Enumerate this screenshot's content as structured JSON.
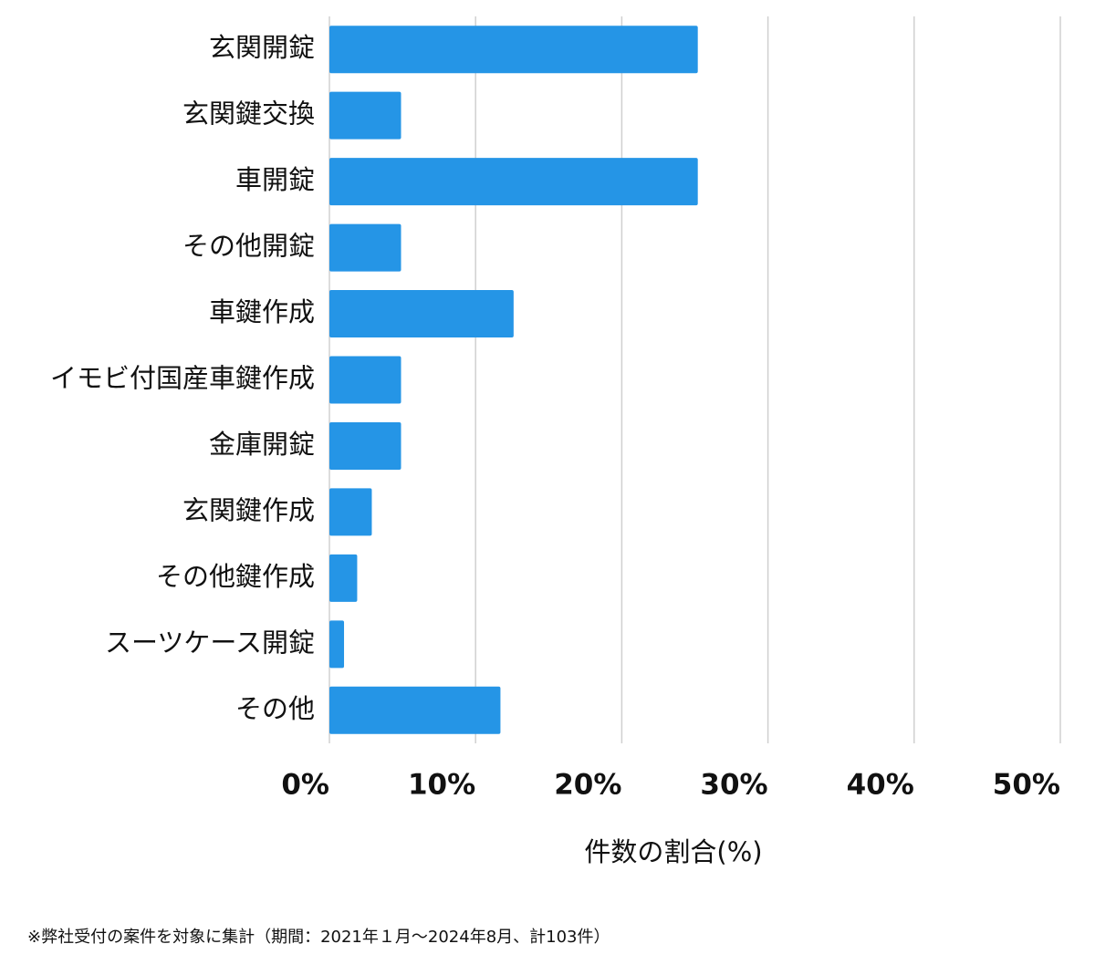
{
  "chart_data": {
    "type": "hbar",
    "categories": [
      "玄関開錠",
      "玄関鍵交換",
      "車開錠",
      "その他開錠",
      "車鍵作成",
      "イモビ付国産車鍵作成",
      "金庫開錠",
      "玄関鍵作成",
      "その他鍵作成",
      "スーツケース開錠",
      "その他"
    ],
    "values": [
      25.2,
      4.9,
      25.2,
      4.9,
      12.6,
      4.9,
      4.9,
      2.9,
      1.9,
      1.0,
      11.7
    ],
    "color": "#2595e6",
    "xlabel": "件数の割合(%)",
    "xlim": [
      0,
      50
    ],
    "xticks": [
      {
        "value": 0,
        "label": "0%"
      },
      {
        "value": 10,
        "label": "10%"
      },
      {
        "value": 20,
        "label": "20%"
      },
      {
        "value": 30,
        "label": "30%"
      },
      {
        "value": 40,
        "label": "40%"
      },
      {
        "value": 50,
        "label": "50%"
      }
    ],
    "grid": true,
    "note": "※弊社受付の案件を対象に集計（期間：2021年１月～2024年8月、計103件）"
  }
}
